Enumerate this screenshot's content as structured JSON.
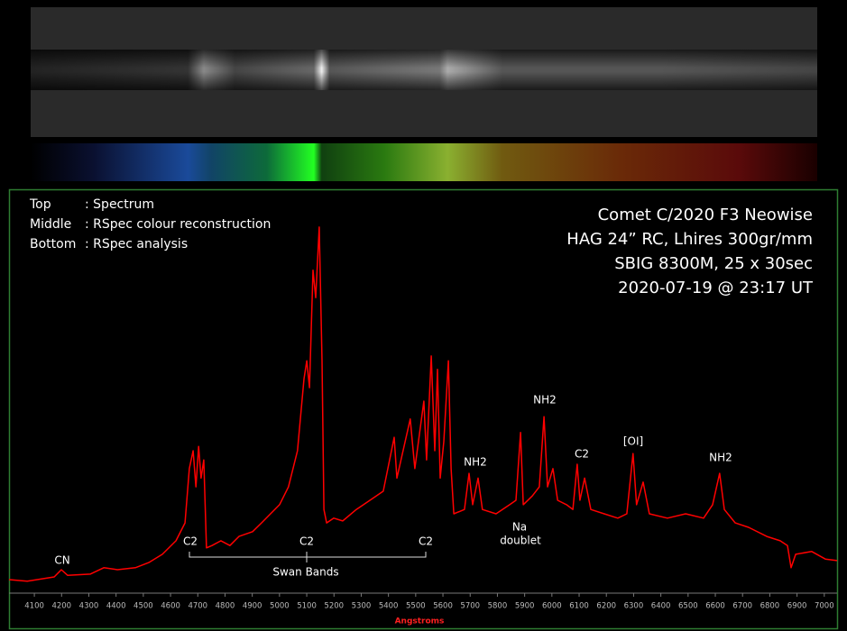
{
  "chart_data": {
    "type": "line",
    "title_lines": [
      "Comet C/2020 F3 Neowise",
      "HAG 24” RC, Lhires 300gr/mm",
      "SBIG 8300M, 25 x 30sec",
      "2020-07-19 @ 23:17 UT"
    ],
    "key_lines": [
      [
        "Top",
        ": Spectrum"
      ],
      [
        "Middle",
        ": RSpec colour reconstruction"
      ],
      [
        "Bottom",
        ": RSpec analysis"
      ]
    ],
    "x_label": "Angstroms",
    "color": "#ff0000",
    "x": [
      4007,
      4074,
      4173,
      4199,
      4222,
      4305,
      4355,
      4405,
      4471,
      4520,
      4570,
      4620,
      4653,
      4669,
      4683,
      4693,
      4703,
      4712,
      4722,
      4732,
      4752,
      4785,
      4818,
      4851,
      4901,
      4934,
      4967,
      5000,
      5033,
      5066,
      5090,
      5100,
      5110,
      5123,
      5133,
      5146,
      5156,
      5163,
      5173,
      5199,
      5232,
      5282,
      5332,
      5381,
      5421,
      5431,
      5480,
      5497,
      5530,
      5540,
      5557,
      5570,
      5580,
      5590,
      5603,
      5620,
      5630,
      5640,
      5679,
      5696,
      5709,
      5729,
      5745,
      5795,
      5845,
      5868,
      5885,
      5895,
      5928,
      5954,
      5971,
      5984,
      6004,
      6021,
      6054,
      6077,
      6093,
      6103,
      6120,
      6143,
      6192,
      6242,
      6275,
      6298,
      6311,
      6335,
      6358,
      6424,
      6491,
      6557,
      6590,
      6616,
      6633,
      6673,
      6722,
      6789,
      6838,
      6865,
      6878,
      6895,
      6954,
      7004,
      7047
    ],
    "values": [
      3.4,
      3.0,
      4.1,
      5.9,
      4.5,
      4.8,
      6.4,
      5.9,
      6.4,
      7.7,
      9.8,
      13.2,
      17.7,
      31.4,
      35.9,
      26.8,
      37,
      29,
      33.6,
      11.4,
      12,
      13.2,
      12,
      14.3,
      15.5,
      17.7,
      20,
      22.3,
      26.8,
      35.9,
      54,
      58.6,
      51.8,
      81.4,
      74.5,
      92.3,
      58.6,
      21.1,
      17.7,
      18.9,
      18.2,
      21.1,
      23.4,
      25.7,
      39.3,
      29,
      43.9,
      31.4,
      48.4,
      33.6,
      59.8,
      35.9,
      56.4,
      29,
      38.2,
      58.6,
      31.4,
      20,
      21.1,
      30.2,
      22.3,
      29,
      21.1,
      20,
      22.3,
      23.4,
      40.5,
      22.3,
      24.5,
      26.8,
      44.5,
      26.8,
      31.4,
      23.4,
      22.3,
      21.1,
      32.5,
      23.4,
      29,
      21.1,
      20,
      18.9,
      20,
      35.2,
      22.3,
      28,
      20,
      18.9,
      20,
      18.9,
      22.3,
      30.2,
      21.1,
      17.7,
      16.6,
      14.3,
      13.2,
      12,
      6.4,
      9.8,
      10.5,
      8.6,
      8.2
    ],
    "xlim": [
      4007,
      7047
    ],
    "ylim": [
      0,
      100
    ],
    "xticks": [
      4100,
      4200,
      4300,
      4400,
      4500,
      4600,
      4700,
      4800,
      4900,
      5000,
      5100,
      5200,
      5300,
      5400,
      5500,
      5600,
      5700,
      5800,
      5900,
      6000,
      6100,
      6200,
      6300,
      6400,
      6500,
      6600,
      6700,
      6800,
      6900,
      7000
    ],
    "annotations": [
      "CN",
      "C2",
      "C2",
      "C2",
      "Swan Bands",
      "NH2",
      "NH2",
      "NH2",
      "Na",
      "doublet",
      "C2",
      "[OI]"
    ]
  }
}
